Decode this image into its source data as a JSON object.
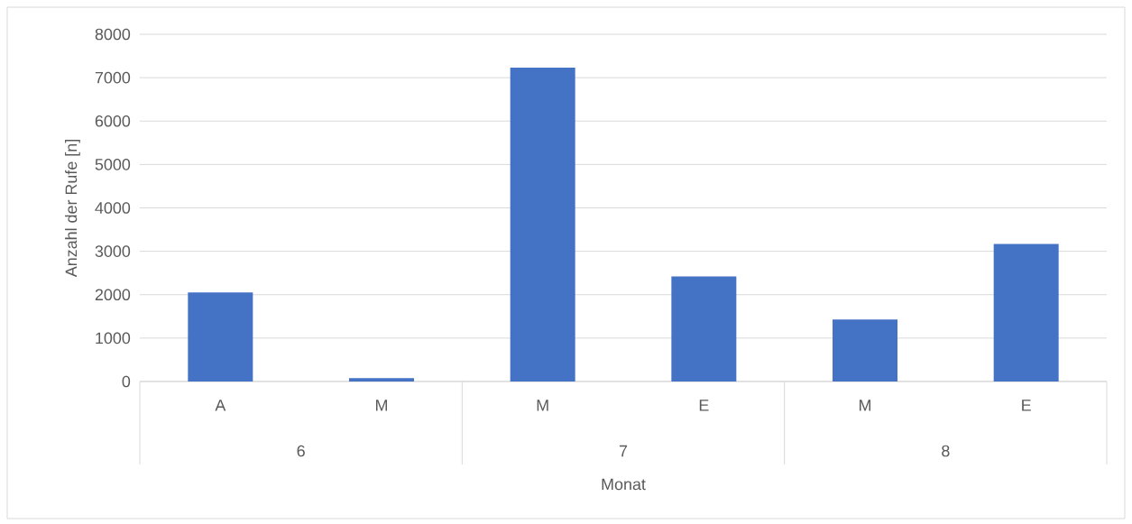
{
  "chart_data": {
    "type": "bar",
    "xlabel": "Monat",
    "ylabel": "Anzahl der Rufe [n]",
    "categories": [
      "A",
      "M",
      "M",
      "E",
      "M",
      "E"
    ],
    "annotations": [
      "6",
      "7",
      "8"
    ],
    "values": [
      2050,
      80,
      7230,
      2420,
      1430,
      3170
    ],
    "color": "#4472c4",
    "ylim": [
      0,
      8000
    ],
    "yticks": [
      0,
      1000,
      2000,
      3000,
      4000,
      5000,
      6000,
      7000,
      8000
    ],
    "grid": "y"
  }
}
